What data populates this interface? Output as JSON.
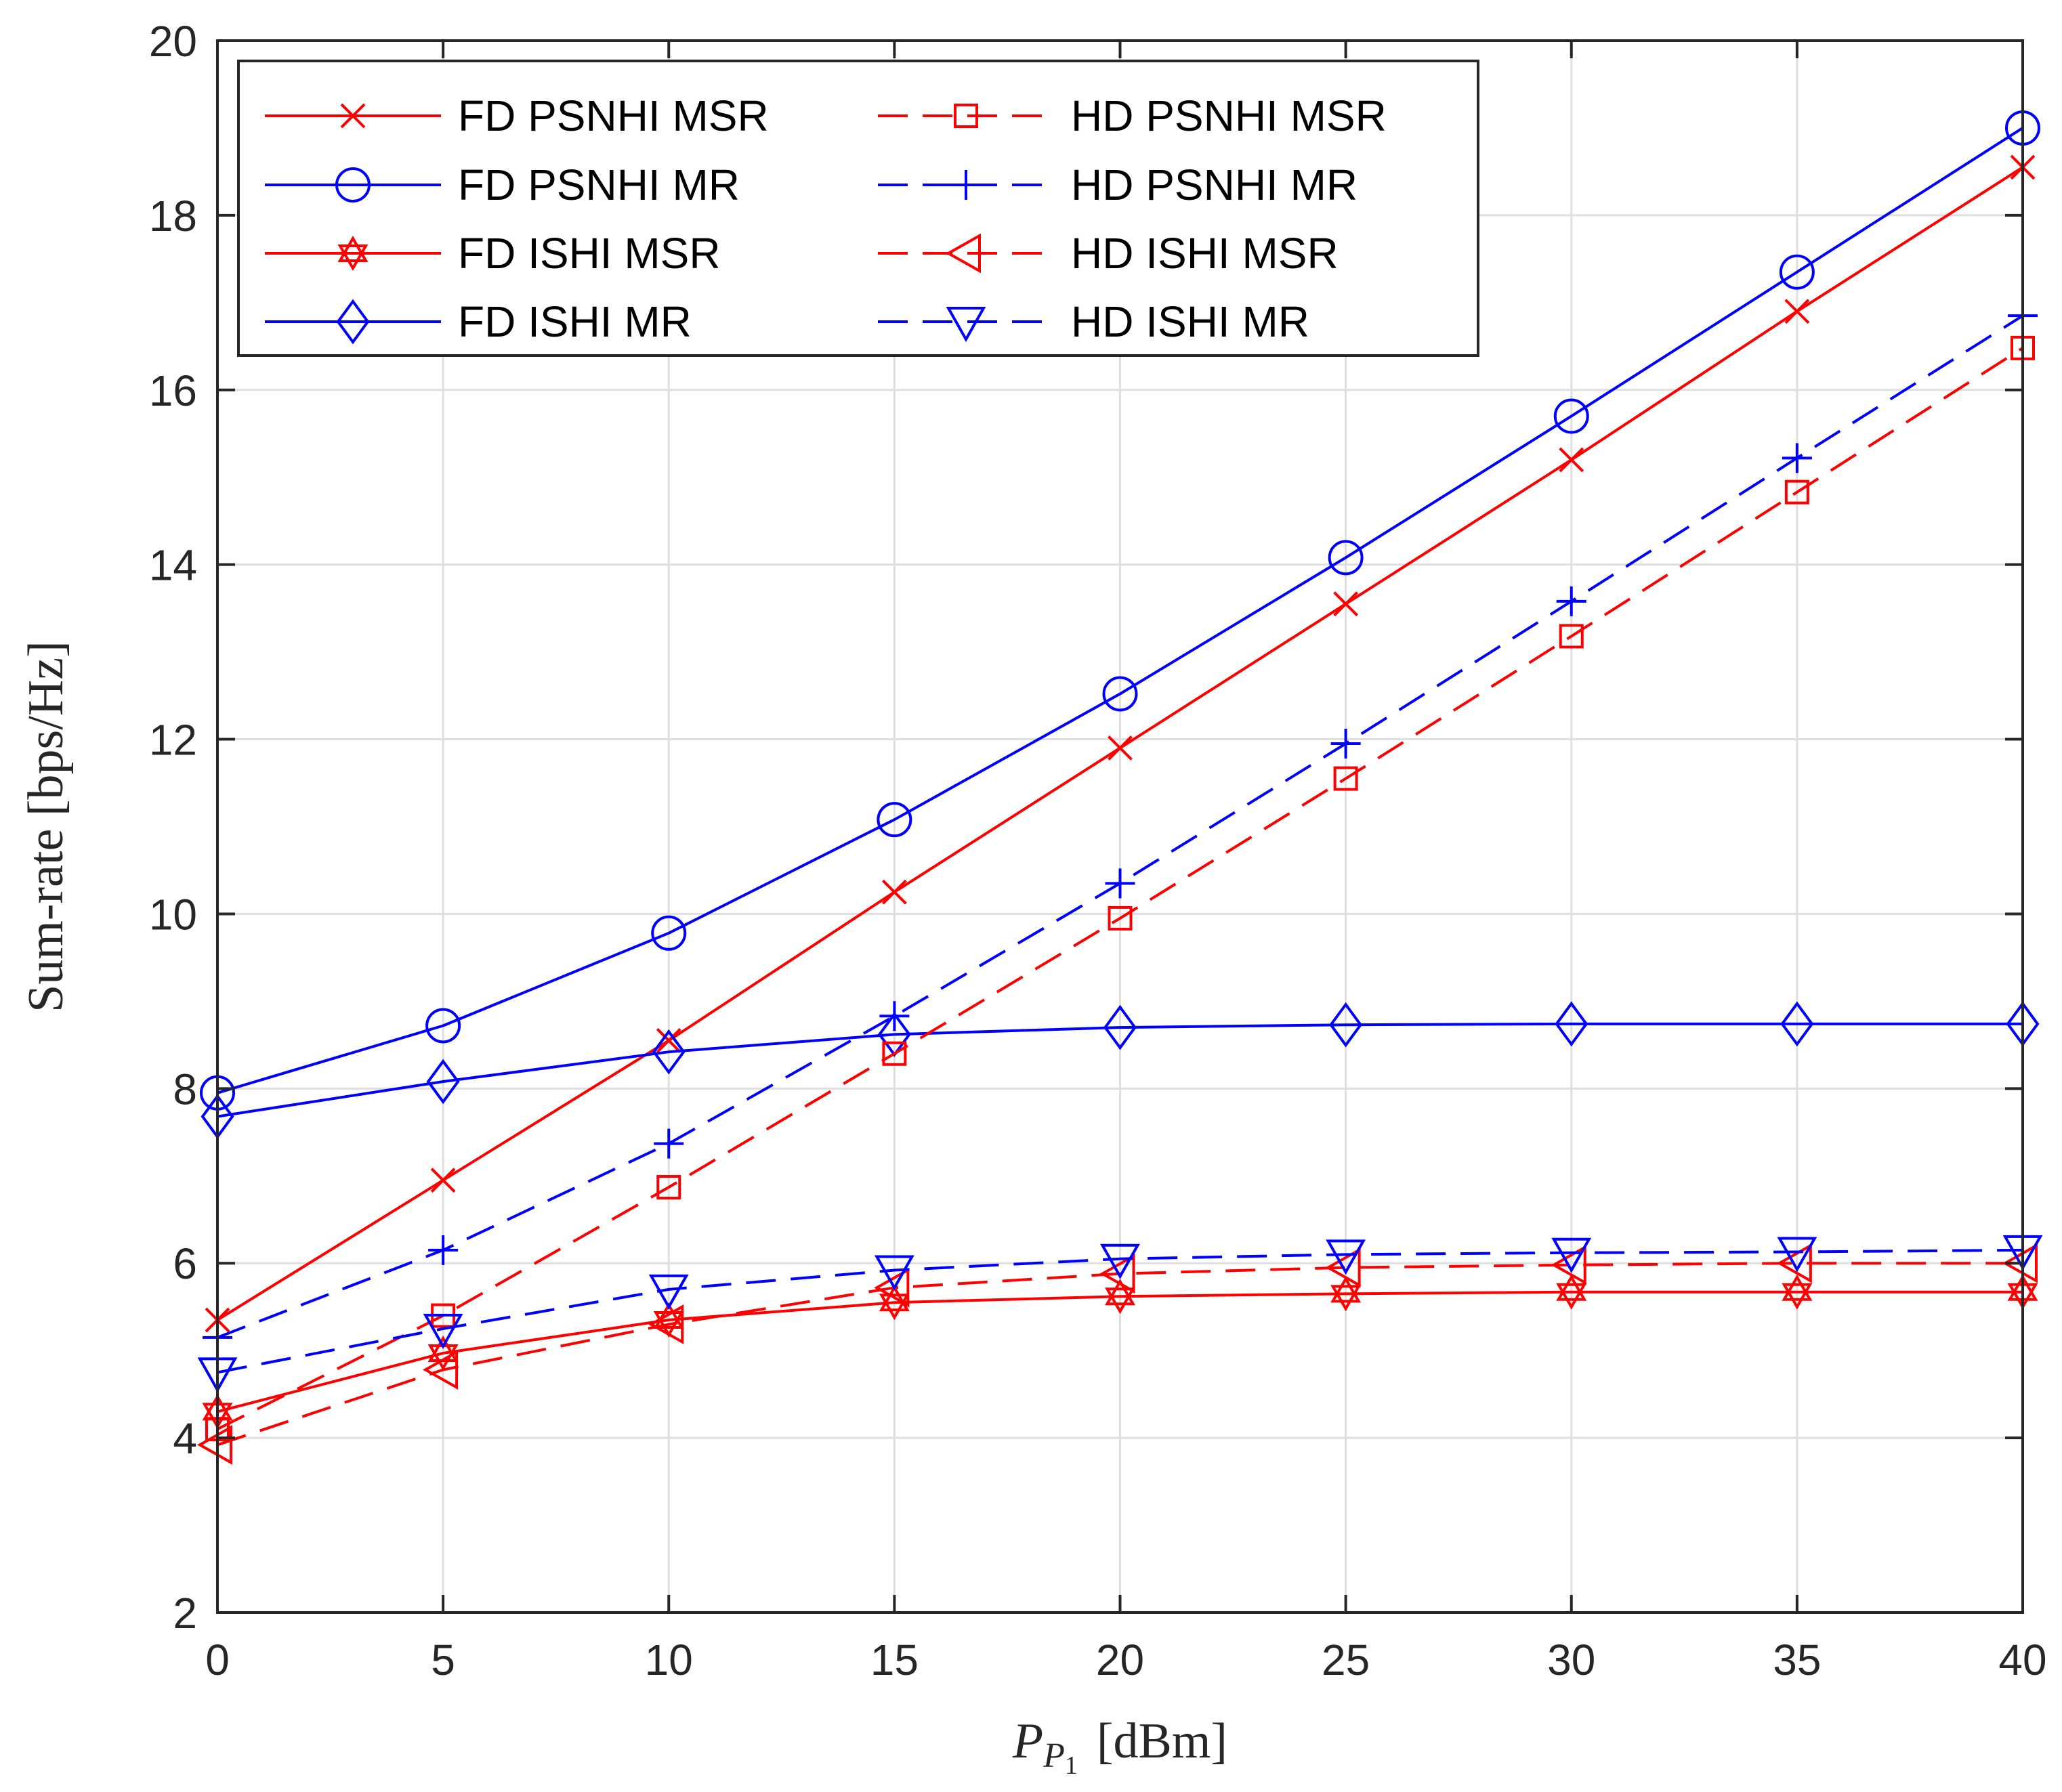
{
  "chart_data": {
    "type": "line",
    "title": "",
    "xlabel": {
      "main": "P",
      "sub": "P",
      "subsub": "1",
      "unit": "[dBm]"
    },
    "ylabel": "Sum-rate [bps/Hz]",
    "xlim": [
      0,
      40
    ],
    "ylim": [
      2,
      20
    ],
    "xticks": [
      0,
      5,
      10,
      15,
      20,
      25,
      30,
      35,
      40
    ],
    "yticks": [
      2,
      4,
      6,
      8,
      10,
      12,
      14,
      16,
      18,
      20
    ],
    "grid": true,
    "legend_position": "top-left",
    "x": [
      0,
      5,
      10,
      15,
      20,
      25,
      30,
      35,
      40
    ],
    "series": [
      {
        "name": "FD PSNHI MSR",
        "color": "#ff0000",
        "dash": "solid",
        "marker": "x",
        "values": [
          5.35,
          6.95,
          8.55,
          10.25,
          11.9,
          13.55,
          15.2,
          16.9,
          18.55
        ]
      },
      {
        "name": "FD PSNHI MR",
        "color": "#0000ff",
        "dash": "solid",
        "marker": "circle",
        "values": [
          7.95,
          8.72,
          9.78,
          11.08,
          12.52,
          14.08,
          15.7,
          17.35,
          19.0
        ]
      },
      {
        "name": "FD ISHI MSR",
        "color": "#ff0000",
        "dash": "solid",
        "marker": "hexagram",
        "values": [
          4.3,
          4.97,
          5.35,
          5.55,
          5.62,
          5.65,
          5.67,
          5.67,
          5.67
        ]
      },
      {
        "name": "FD ISHI MR",
        "color": "#0000ff",
        "dash": "solid",
        "marker": "diamond",
        "values": [
          7.68,
          8.08,
          8.42,
          8.62,
          8.7,
          8.73,
          8.74,
          8.74,
          8.74
        ]
      },
      {
        "name": "HD PSNHI MSR",
        "color": "#ff0000",
        "dash": "dashed",
        "marker": "square",
        "values": [
          4.1,
          5.4,
          6.87,
          8.4,
          9.95,
          11.55,
          13.18,
          14.83,
          16.48
        ]
      },
      {
        "name": "HD PSNHI MR",
        "color": "#0000ff",
        "dash": "dashed",
        "marker": "plus",
        "values": [
          5.15,
          6.15,
          7.37,
          8.83,
          10.35,
          11.95,
          13.58,
          15.22,
          16.85
        ]
      },
      {
        "name": "HD ISHI MSR",
        "color": "#ff0000",
        "dash": "dashed",
        "marker": "triangle-left",
        "values": [
          3.92,
          4.78,
          5.3,
          5.72,
          5.88,
          5.95,
          5.98,
          6.0,
          6.0
        ]
      },
      {
        "name": "HD ISHI MR",
        "color": "#0000ff",
        "dash": "dashed",
        "marker": "triangle-down",
        "values": [
          4.75,
          5.25,
          5.7,
          5.92,
          6.05,
          6.1,
          6.12,
          6.13,
          6.15
        ]
      }
    ]
  }
}
